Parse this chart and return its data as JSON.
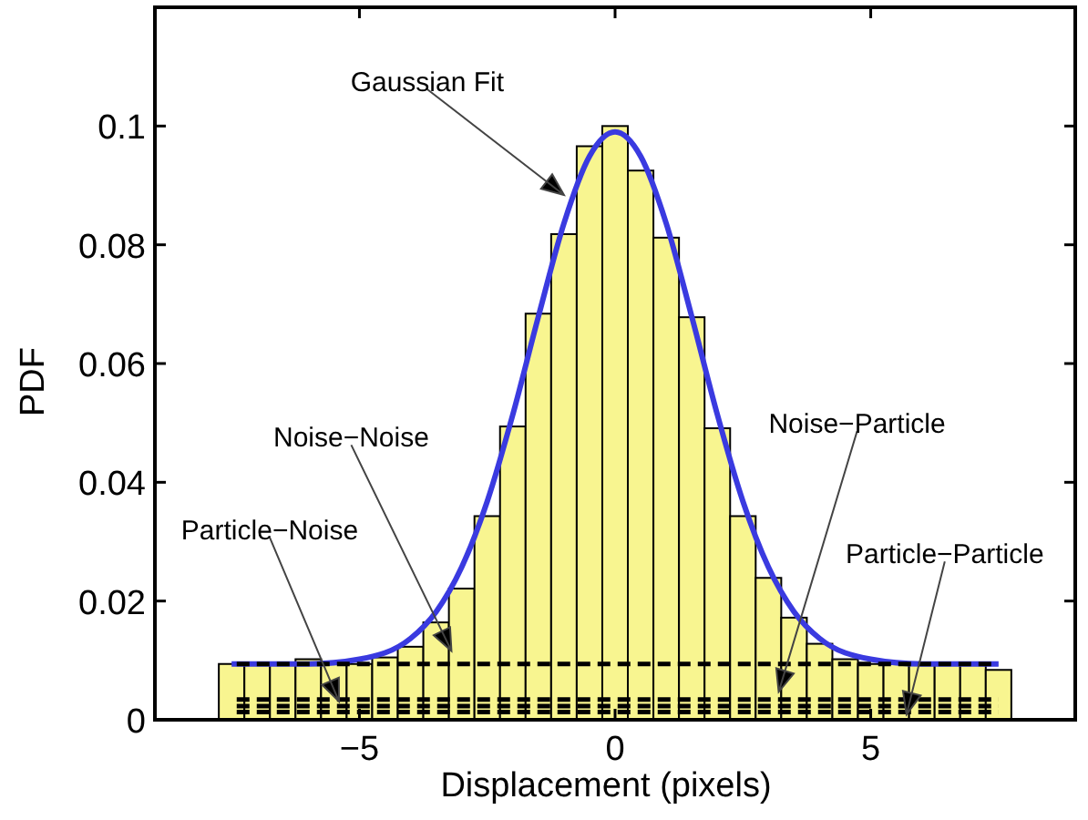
{
  "chart_data": {
    "type": "histogram",
    "xlabel": "Displacement (pixels)",
    "ylabel": "PDF",
    "bins": [
      -7.75,
      -7.25,
      -6.75,
      -6.25,
      -5.75,
      -5.25,
      -4.75,
      -4.25,
      -3.75,
      -3.25,
      -2.75,
      -2.25,
      -1.75,
      -1.25,
      -0.75,
      -0.25,
      0.25,
      0.75,
      1.25,
      1.75,
      2.25,
      2.75,
      3.25,
      3.75,
      4.25,
      4.75,
      5.25,
      5.75,
      6.25,
      6.75,
      7.25,
      7.75
    ],
    "values": [
      0.0094,
      0.0094,
      0.0094,
      0.0102,
      0.0094,
      0.0094,
      0.0105,
      0.0123,
      0.0164,
      0.0221,
      0.0343,
      0.0494,
      0.0684,
      0.0818,
      0.0966,
      0.1,
      0.0925,
      0.0812,
      0.0678,
      0.0491,
      0.0343,
      0.0239,
      0.0172,
      0.0128,
      0.0102,
      0.0094,
      0.0094,
      0.0094,
      0.0094,
      0.0094,
      0.0084
    ],
    "color": "#f8f590",
    "series": [
      {
        "type": "line",
        "color": "#3a3ae0",
        "x": [
          -7.5,
          -6,
          -5,
          -4,
          -3.5,
          -3,
          -2.5,
          -2,
          -1.5,
          -1,
          -0.5,
          0,
          0.5,
          1,
          1.5,
          2,
          2.5,
          3,
          3.5,
          4,
          5,
          6,
          7.5
        ],
        "values": [
          0.0094,
          0.0094,
          0.0102,
          0.0137,
          0.0182,
          0.0257,
          0.0368,
          0.0514,
          0.0679,
          0.0836,
          0.0949,
          0.099,
          0.0949,
          0.0836,
          0.0679,
          0.0514,
          0.0368,
          0.0257,
          0.0182,
          0.0137,
          0.0102,
          0.0094,
          0.0094
        ]
      },
      {
        "type": "line",
        "color": "#000000",
        "line_style": "dashed",
        "x": [
          -7.4,
          7.5
        ],
        "values": [
          0.0094,
          0.0094
        ]
      },
      {
        "type": "line",
        "color": "#000000",
        "line_style": "dashed",
        "x": [
          -7.4,
          7.5
        ],
        "values": [
          0.0034,
          0.0034
        ]
      },
      {
        "type": "line",
        "color": "#000000",
        "line_style": "dashed",
        "x": [
          -7.4,
          7.5
        ],
        "values": [
          0.0023,
          0.0023
        ]
      },
      {
        "type": "line",
        "color": "#000000",
        "line_style": "dashed",
        "x": [
          -7.4,
          7.5
        ],
        "values": [
          0.0013,
          0.0013
        ]
      }
    ],
    "annotations": [
      {
        "text": "Gaussian Fit",
        "x": -1.0,
        "y": 0.0884
      },
      {
        "text": "Noise−Noise",
        "x": -3.2,
        "y": 0.0116
      },
      {
        "text": "Particle−Noise",
        "x": -5.4,
        "y": 0.0031
      },
      {
        "text": "Noise−Particle",
        "x": 3.2,
        "y": 0.0047
      },
      {
        "text": "Particle−Particle",
        "x": 5.7,
        "y": 0.0009
      }
    ],
    "xlim": [
      -9,
      9
    ],
    "xticks": [
      -5,
      0,
      5
    ],
    "ylim": [
      0,
      0.12
    ],
    "yticks": [
      0,
      0.02,
      0.04,
      0.06,
      0.08,
      0.1
    ],
    "grid": false
  }
}
